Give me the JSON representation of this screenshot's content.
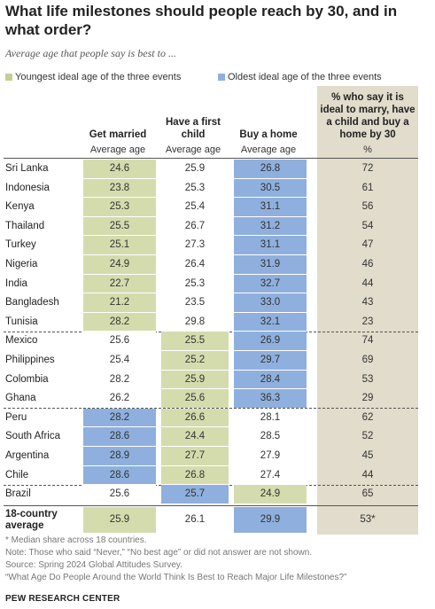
{
  "title": "What life milestones should people reach by 30, and in what order?",
  "subtitle": "Average age that people say is best to ...",
  "legend": {
    "youngest": "Youngest ideal age of the three events",
    "oldest": "Oldest ideal age of the three events"
  },
  "colors": {
    "youngest": "#d4dcae",
    "oldest": "#8fb0de",
    "share_col": "#e1dccb",
    "none": "#ffffff"
  },
  "columns": {
    "married": {
      "title": "Get married",
      "sub": "Average age"
    },
    "child": {
      "title": "Have a first child",
      "sub": "Average age"
    },
    "home": {
      "title": "Buy a home",
      "sub": "Average age"
    },
    "share": {
      "title": "% who say it is ideal to marry, have a child and buy a home by 30",
      "sub": "%"
    }
  },
  "chart_data": {
    "type": "table",
    "title": "What life milestones should people reach by 30, and in what order?",
    "columns": [
      "Get married",
      "Have a first child",
      "Buy a home",
      "% who say it is ideal to marry, have a child and buy a home by 30"
    ],
    "rows": [
      {
        "country": "Sri Lanka",
        "married": "24.6",
        "child": "25.9",
        "home": "26.8",
        "share": "72",
        "y": "youngest",
        "o": "oldest",
        "h": "none"
      },
      {
        "country": "Indonesia",
        "married": "23.8",
        "child": "25.3",
        "home": "30.5",
        "share": "61"
      },
      {
        "country": "Kenya",
        "married": "25.3",
        "child": "25.4",
        "home": "31.1",
        "share": "56"
      },
      {
        "country": "Thailand",
        "married": "25.5",
        "child": "26.7",
        "home": "31.2",
        "share": "54"
      },
      {
        "country": "Turkey",
        "married": "25.1",
        "child": "27.3",
        "home": "31.1",
        "share": "47"
      },
      {
        "country": "Nigeria",
        "married": "24.9",
        "child": "26.4",
        "home": "31.9",
        "share": "46"
      },
      {
        "country": "India",
        "married": "22.7",
        "child": "25.3",
        "home": "32.7",
        "share": "44"
      },
      {
        "country": "Bangladesh",
        "married": "21.2",
        "child": "23.5",
        "home": "33.0",
        "share": "43"
      },
      {
        "country": "Tunisia",
        "married": "28.2",
        "child": "29.8",
        "home": "32.1",
        "share": "23"
      },
      {
        "country": "Mexico",
        "married": "25.6",
        "child": "25.5",
        "home": "26.9",
        "share": "74"
      },
      {
        "country": "Philippines",
        "married": "25.4",
        "child": "25.2",
        "home": "29.7",
        "share": "69"
      },
      {
        "country": "Colombia",
        "married": "28.2",
        "child": "25.9",
        "home": "28.4",
        "share": "53"
      },
      {
        "country": "Ghana",
        "married": "26.2",
        "child": "25.6",
        "home": "36.3",
        "share": "29"
      },
      {
        "country": "Peru",
        "married": "28.2",
        "child": "26.6",
        "home": "28.1",
        "share": "62"
      },
      {
        "country": "South Africa",
        "married": "28.6",
        "child": "24.4",
        "home": "28.5",
        "share": "52"
      },
      {
        "country": "Argentina",
        "married": "28.9",
        "child": "27.7",
        "home": "27.9",
        "share": "45"
      },
      {
        "country": "Chile",
        "married": "28.6",
        "child": "26.8",
        "home": "27.4",
        "share": "44"
      },
      {
        "country": "Brazil",
        "married": "25.6",
        "child": "25.7",
        "home": "24.9",
        "share": "65"
      }
    ],
    "highlights": [
      [
        "y",
        "n",
        "o"
      ],
      [
        "y",
        "n",
        "o"
      ],
      [
        "y",
        "n",
        "o"
      ],
      [
        "y",
        "n",
        "o"
      ],
      [
        "y",
        "n",
        "o"
      ],
      [
        "y",
        "n",
        "o"
      ],
      [
        "y",
        "n",
        "o"
      ],
      [
        "y",
        "n",
        "o"
      ],
      [
        "y",
        "n",
        "o"
      ],
      [
        "n",
        "y",
        "o"
      ],
      [
        "n",
        "y",
        "o"
      ],
      [
        "n",
        "y",
        "o"
      ],
      [
        "n",
        "y",
        "o"
      ],
      [
        "o",
        "y",
        "n"
      ],
      [
        "o",
        "y",
        "n"
      ],
      [
        "o",
        "y",
        "n"
      ],
      [
        "o",
        "y",
        "n"
      ],
      [
        "n",
        "o",
        "y"
      ]
    ],
    "average": {
      "country": "18-country average",
      "married": "25.9",
      "child": "26.1",
      "home": "29.9",
      "share": "53*",
      "hl": [
        "y",
        "n",
        "o"
      ]
    },
    "group_breaks_after": [
      8,
      12,
      16
    ]
  },
  "notes": [
    "* Median share across 18 countries.",
    "Note: Those who said “Never,” “No best age” or did not answer are not shown.",
    "Source: Spring 2024 Global Attitudes Survey.",
    "“What Age Do People Around the World Think Is Best to Reach Major Life Milestones?”"
  ],
  "brand": "PEW RESEARCH CENTER"
}
